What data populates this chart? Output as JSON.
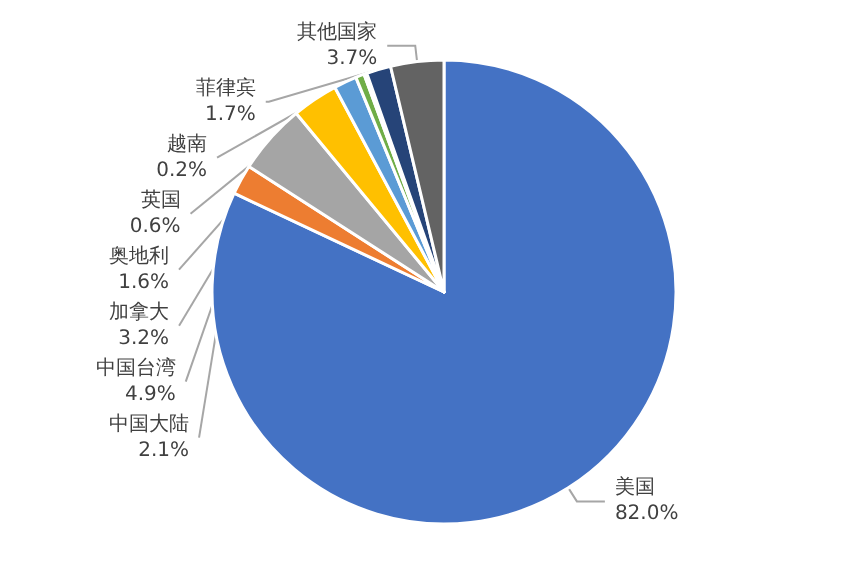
{
  "chart_data": {
    "type": "pie",
    "categories": [
      "美国",
      "中国大陆",
      "中国台湾",
      "加拿大",
      "奥地利",
      "英国",
      "越南",
      "菲律宾",
      "其他国家"
    ],
    "values": [
      82.0,
      2.1,
      4.9,
      3.2,
      1.6,
      0.6,
      0.2,
      1.7,
      3.7
    ],
    "colors": [
      "#4472c4",
      "#ed7d31",
      "#a5a5a5",
      "#ffc000",
      "#5b9bd5",
      "#70ad47",
      "#9e480e",
      "#264478",
      "#636363"
    ],
    "value_labels": [
      "82.0%",
      "2.1%",
      "4.9%",
      "3.2%",
      "1.6%",
      "0.6%",
      "0.2%",
      "1.7%",
      "3.7%"
    ],
    "legend": false
  }
}
